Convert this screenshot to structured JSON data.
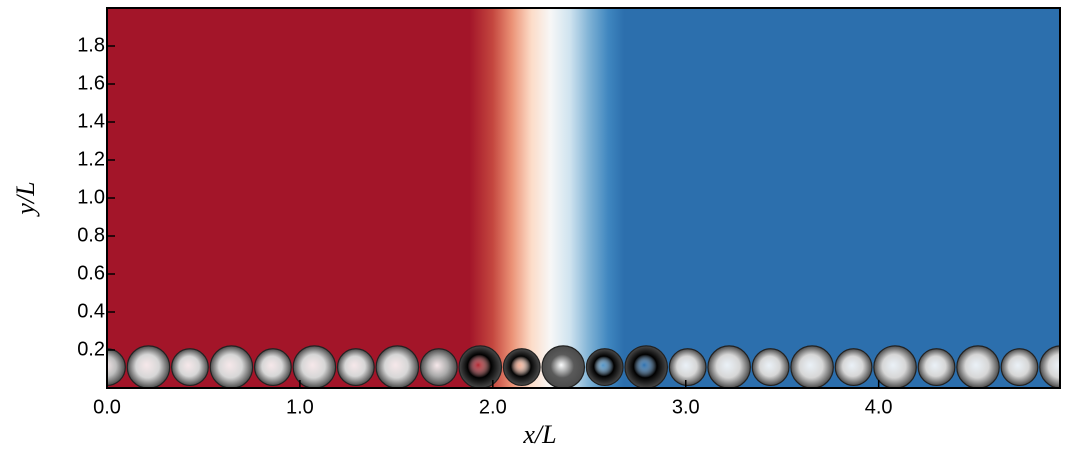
{
  "chart_data": {
    "type": "field",
    "x_label": "x/L",
    "y_label": "y/L",
    "xlim": [
      0,
      4.94
    ],
    "ylim": [
      0,
      2.0
    ],
    "xticks": [
      {
        "value": 0,
        "label": "0.0"
      },
      {
        "value": 1,
        "label": "1.0"
      },
      {
        "value": 2,
        "label": "2.0"
      },
      {
        "value": 3,
        "label": "3.0"
      },
      {
        "value": 4,
        "label": "4.0"
      }
    ],
    "yticks": [
      0.2,
      0.4,
      0.6,
      0.8,
      {
        "value": 1,
        "label": "1.0"
      },
      1.2,
      1.4,
      1.6,
      1.8
    ],
    "field_stops": {
      "x": [
        1.88,
        2.0,
        2.1,
        2.2,
        2.3,
        2.4,
        2.5,
        2.6,
        2.68
      ],
      "colors": [
        "#a31529",
        "#c4473f",
        "#eb9377",
        "#fcdcc8",
        "#f7f7f7",
        "#cfe3ef",
        "#7fb2d5",
        "#3f86bf",
        "#2c6fad"
      ]
    },
    "spheres": {
      "x": [
        0,
        0.215,
        0.43,
        0.645,
        0.86,
        1.075,
        1.29,
        1.505,
        1.72,
        1.935,
        2.15,
        2.365,
        2.58,
        2.795,
        3.01,
        3.225,
        3.44,
        3.655,
        3.87,
        4.085,
        4.3,
        4.515,
        4.73,
        4.945
      ],
      "y": [
        0.11,
        0.11,
        0.11,
        0.11,
        0.11,
        0.11,
        0.11,
        0.11,
        0.11,
        0.11,
        0.11,
        0.11,
        0.11,
        0.11,
        0.11,
        0.11,
        0.11,
        0.11,
        0.11,
        0.11,
        0.11,
        0.11,
        0.11,
        0.11
      ],
      "r": [
        0.095,
        0.11,
        0.095,
        0.11,
        0.095,
        0.11,
        0.095,
        0.11,
        0.095,
        0.11,
        0.095,
        0.11,
        0.095,
        0.11,
        0.095,
        0.11,
        0.095,
        0.11,
        0.095,
        0.11,
        0.095,
        0.11,
        0.095,
        0.11
      ],
      "colors": [
        "#bdbdbd",
        "#d6d6d6",
        "#d6d6d6",
        "#d6d6d6",
        "#d6d6d6",
        "#d6d6d6",
        "#d6d6d6",
        "#d6d6d6",
        "#aaaaaa",
        "#000000",
        "#050505",
        "#5a5a5a",
        "#000000",
        "#000000",
        "#d6d6d6",
        "#d6d6d6",
        "#d6d6d6",
        "#d6d6d6",
        "#d6d6d6",
        "#d6d6d6",
        "#d6d6d6",
        "#d6d6d6",
        "#d6d6d6",
        "#d6d6d6"
      ]
    }
  }
}
